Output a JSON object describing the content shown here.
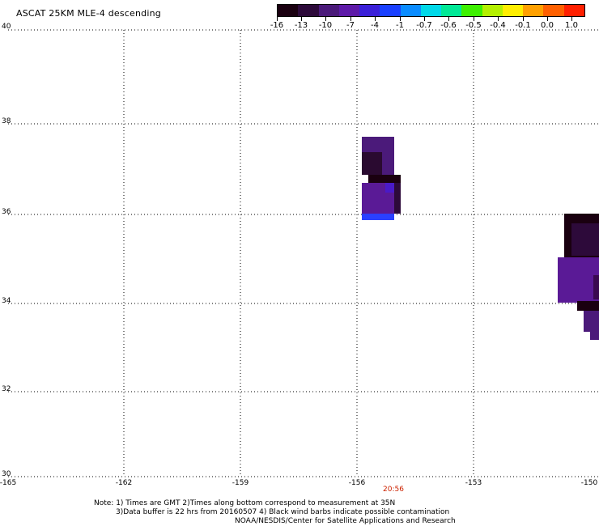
{
  "header": {
    "title": "ASCAT 25KM MLE-4 descending"
  },
  "colorbar": {
    "labels": [
      "-16",
      "-13",
      "-10",
      "-7",
      "-4",
      "-1",
      "-0.7",
      "-0.6",
      "-0.5",
      "-0.4",
      "-0.1",
      "0.0",
      "1.0"
    ],
    "colors": [
      "#1a0010",
      "#2d0a3a",
      "#4b1a7a",
      "#5e1aa8",
      "#3b20d8",
      "#1a40ff",
      "#0a8cff",
      "#00d8e8",
      "#00e896",
      "#3ef000",
      "#b4f000",
      "#ffee00",
      "#ffa000",
      "#ff6000",
      "#ff2000"
    ]
  },
  "map": {
    "lat_labels": [
      "40",
      "38",
      "36",
      "34",
      "32",
      "30"
    ],
    "lon_labels": [
      "-165",
      "-162",
      "-159",
      "-156",
      "-153",
      "-150"
    ],
    "pass_time": "20:56"
  },
  "notes": {
    "line1": "Note: 1) Times are GMT 2)Times along bottom correspond to measurement at 35N",
    "line2": "3)Data buffer is 22 hrs from 20160507 4) Black wind barbs indicate possible contamination",
    "line3": "NOAA/NESDIS/Center for Satellite Applications and Research"
  }
}
